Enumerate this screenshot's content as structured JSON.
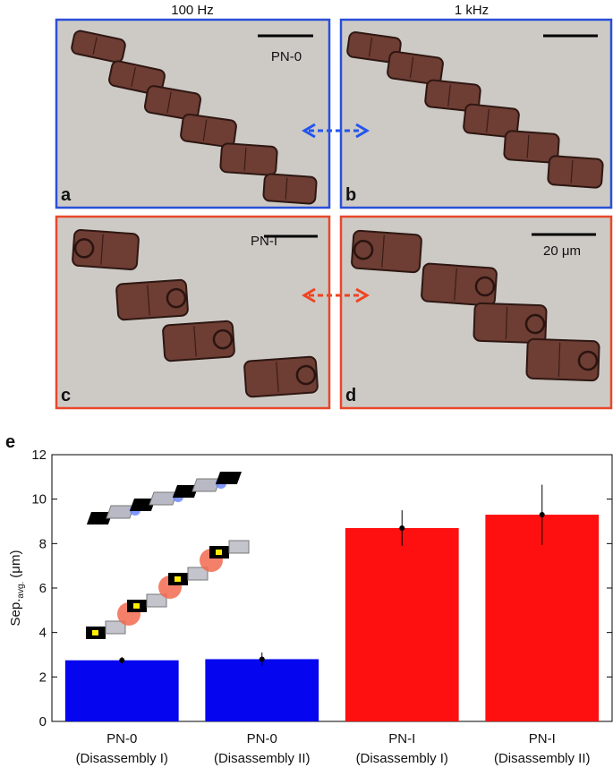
{
  "columns": [
    "100 Hz",
    "1 kHz"
  ],
  "panels": [
    {
      "letter": "a",
      "label": "PN-0"
    },
    {
      "letter": "b"
    },
    {
      "letter": "c",
      "label": "PN-I"
    },
    {
      "letter": "d",
      "label": "20 μm"
    }
  ],
  "chart_data": {
    "type": "bar",
    "panel_letter": "e",
    "y_label": {
      "main": "Sep.",
      "sub": "avg.",
      "unit": "(μm)"
    },
    "categories": [
      [
        "PN-0",
        "(Disassembly I)"
      ],
      [
        "PN-0",
        "(Disassembly II)"
      ],
      [
        "PN-I",
        "(Disassembly I)"
      ],
      [
        "PN-I",
        "(Disassembly II)"
      ]
    ],
    "values": [
      2.75,
      2.8,
      8.7,
      9.3
    ],
    "errors": [
      0.15,
      0.3,
      0.8,
      1.35
    ],
    "colors": [
      "#0505f0",
      "#0505f0",
      "#ff1010",
      "#ff1010"
    ],
    "ylim": [
      0,
      12
    ],
    "yticks": [
      0,
      2,
      4,
      6,
      8,
      10,
      12
    ]
  }
}
